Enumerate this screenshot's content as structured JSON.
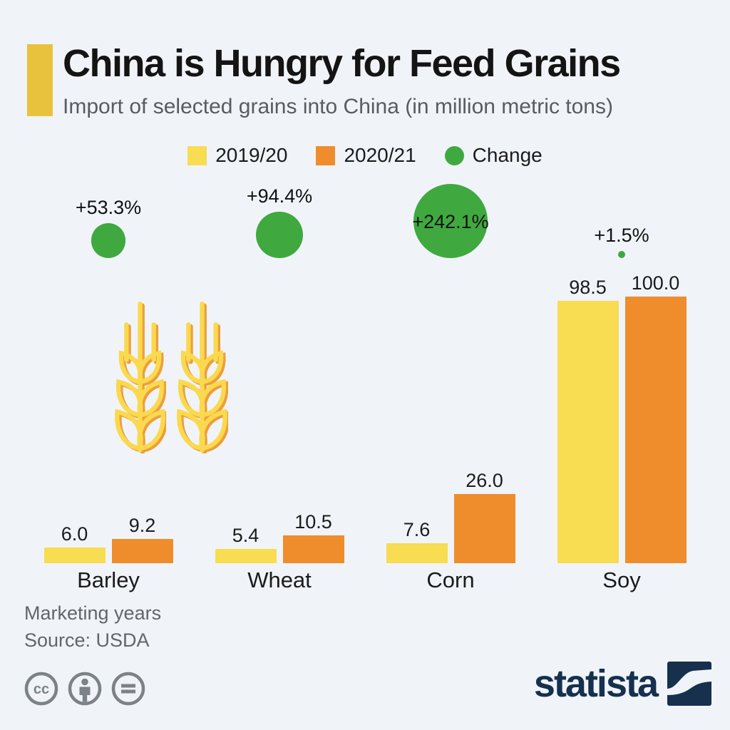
{
  "header": {
    "title": "China is Hungry for Feed Grains",
    "subtitle": "Import of selected grains into China (in million metric tons)"
  },
  "legend": {
    "items": [
      {
        "label": "2019/20",
        "color": "#f8dc52",
        "shape": "square"
      },
      {
        "label": "2020/21",
        "color": "#ef8d2c",
        "shape": "square"
      },
      {
        "label": "Change",
        "color": "#3fa93f",
        "shape": "circle"
      }
    ]
  },
  "chart_data": {
    "type": "bar",
    "categories": [
      "Barley",
      "Wheat",
      "Corn",
      "Soy"
    ],
    "series": [
      {
        "name": "2019/20",
        "color": "#f8dc52",
        "values": [
          6.0,
          5.4,
          7.6,
          98.5
        ]
      },
      {
        "name": "2020/21",
        "color": "#ef8d2c",
        "values": [
          9.2,
          10.5,
          26.0,
          100.0
        ]
      }
    ],
    "change": {
      "name": "Change",
      "color": "#3fa93f",
      "values_pct": [
        53.3,
        94.4,
        242.1,
        1.5
      ],
      "labels": [
        "+53.3%",
        "+94.4%",
        "+242.1%",
        "+1.5%"
      ]
    },
    "title": "China is Hungry for Feed Grains",
    "xlabel": "",
    "ylabel": "million metric tons",
    "ylim": [
      0,
      100
    ],
    "grid": false,
    "legend_position": "top",
    "annotations": "bubble size encodes year-over-year change percentage"
  },
  "decor": {
    "icons": [
      "wheat-stalk-icon",
      "wheat-stalk-icon"
    ],
    "accent_color": "#e9c23d"
  },
  "footer": {
    "note": "Marketing years",
    "source": "Source: USDA",
    "license_icons": [
      "cc-icon",
      "attribution-person-icon",
      "equals-icon"
    ]
  },
  "branding": {
    "logo_text": "statista",
    "logo_color": "#16304e"
  },
  "colors": {
    "background": "#f0f4f8",
    "accent_bar": "#e9c23d",
    "series_2019_20": "#f8dc52",
    "series_2020_21": "#ef8d2c",
    "change_green": "#3fa93f",
    "title_text": "#141414",
    "subtitle_text": "#5a5b5e",
    "footer_text": "#60666c",
    "license_gray": "#7b8288",
    "logo_navy": "#16304e"
  }
}
